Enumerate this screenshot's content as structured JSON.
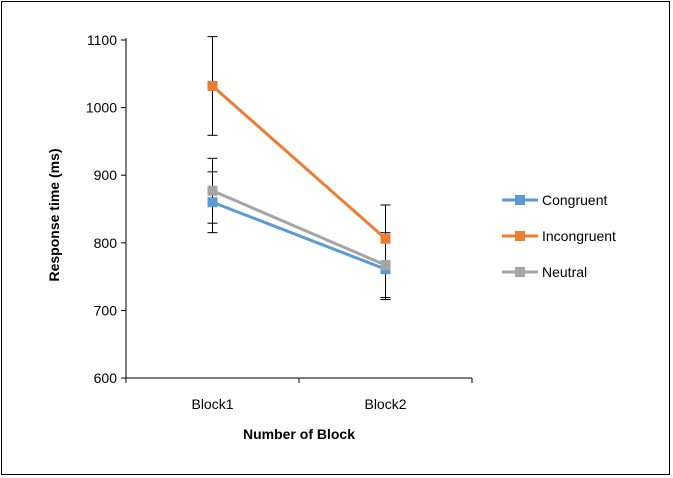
{
  "chart_data": {
    "type": "line",
    "title": "",
    "xlabel": "Number of Block",
    "ylabel": "Response time (ms)",
    "categories": [
      "Block1",
      "Block2"
    ],
    "ylim": [
      600,
      1100
    ],
    "yticks": [
      600,
      700,
      800,
      900,
      1000,
      1100
    ],
    "grid": false,
    "legend_position": "right",
    "series": [
      {
        "name": "Congruent",
        "color": "#5B9BD5",
        "values": [
          860,
          761
        ],
        "error": [
          45,
          45
        ]
      },
      {
        "name": "Incongruent",
        "color": "#ED7D31",
        "values": [
          1032,
          806
        ],
        "error": [
          73,
          50
        ]
      },
      {
        "name": "Neutral",
        "color": "#A5A5A5",
        "values": [
          877,
          767
        ],
        "error": [
          48,
          48
        ]
      }
    ]
  }
}
